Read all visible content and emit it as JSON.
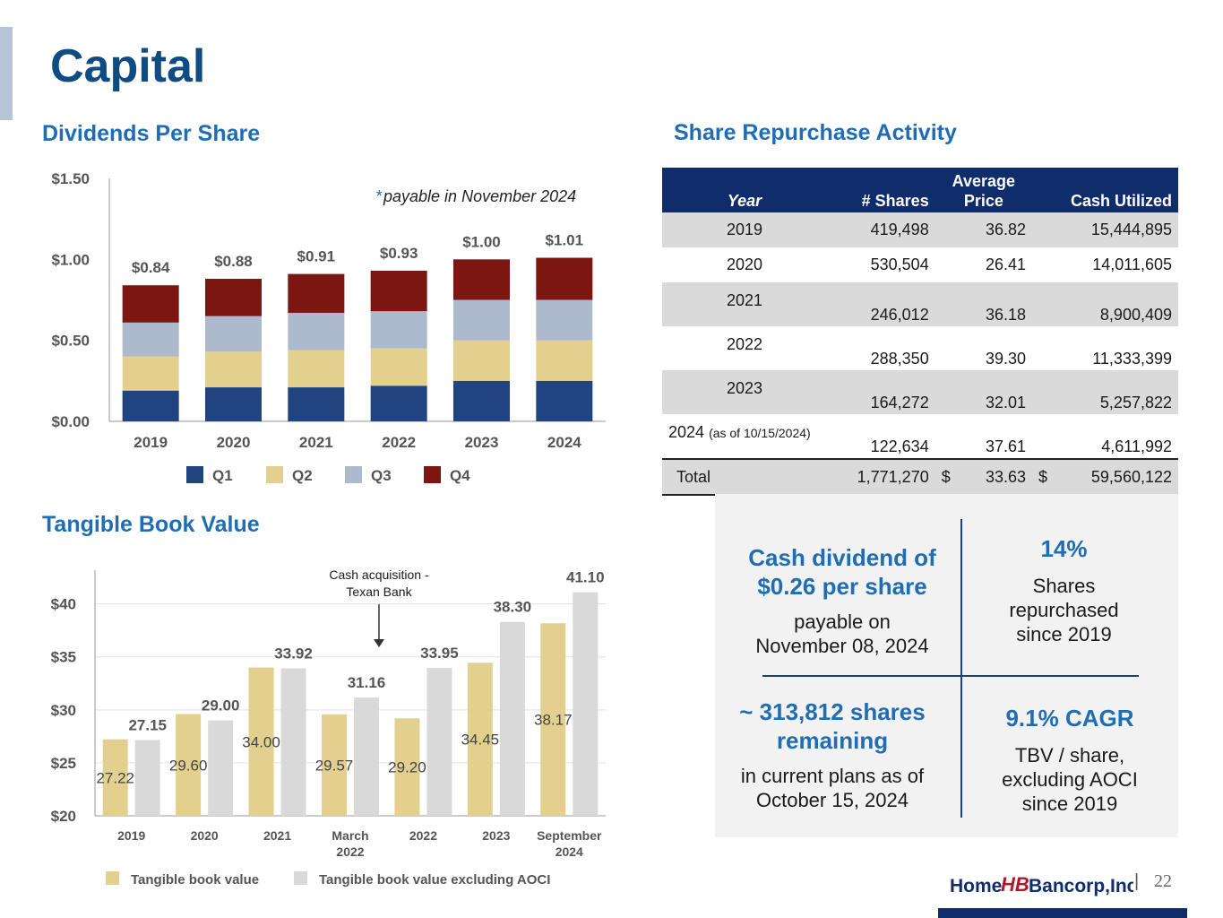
{
  "page": {
    "title": "Capital",
    "page_number": "22",
    "pipe": "|"
  },
  "dividends": {
    "section_title": "Dividends Per Share",
    "note_star": "*",
    "note_text": "payable in November 2024",
    "star_marker": "*"
  },
  "tbv": {
    "section_title": "Tangible Book Value",
    "annotation_line1": "Cash acquisition -",
    "annotation_line2": "Texan Bank"
  },
  "repurchase": {
    "section_title": "Share Repurchase Activity",
    "headers": {
      "year": "Year",
      "shares": "# Shares",
      "avg_line1": "Average",
      "avg_line2": "Price",
      "cash": "Cash Utilized"
    },
    "rows": [
      {
        "year": "2019",
        "note": "",
        "shares": "419,498",
        "price": "36.82",
        "cash": "15,444,895"
      },
      {
        "year": "2020",
        "note": "",
        "shares": "530,504",
        "price": "26.41",
        "cash": "14,011,605"
      },
      {
        "year": "2021",
        "note": "",
        "shares": "246,012",
        "price": "36.18",
        "cash": "8,900,409"
      },
      {
        "year": "2022",
        "note": "",
        "shares": "288,350",
        "price": "39.30",
        "cash": "11,333,399"
      },
      {
        "year": "2023",
        "note": "",
        "shares": "164,272",
        "price": "32.01",
        "cash": "5,257,822"
      },
      {
        "year": "2024",
        "note": "(as of 10/15/2024)",
        "shares": "122,634",
        "price": "37.61",
        "cash": "4,611,992"
      }
    ],
    "total": {
      "label": "Total",
      "shares": "1,771,270",
      "dollar": "$",
      "price": "33.63",
      "cash": "59,560,122"
    }
  },
  "highlights": {
    "q1_big_line1": "Cash dividend of",
    "q1_big_line2": "$0.26 per share",
    "q1_small_line1": "payable on",
    "q1_small_line2": "November 08, 2024",
    "q2_big": "14%",
    "q2_small_line1": "Shares",
    "q2_small_line2": "repurchased",
    "q2_small_line3": "since 2019",
    "q3_big_line1": "~ 313,812 shares",
    "q3_big_line2": "remaining",
    "q3_small_line1": "in current plans as of",
    "q3_small_line2": "October 15, 2024",
    "q4_big": "9.1% CAGR",
    "q4_small_line1": "TBV / share,",
    "q4_small_line2": "excluding AOCI",
    "q4_small_line3": "since 2019"
  },
  "logo": {
    "text_home": "Home",
    "text_monogram": "HB",
    "text_bancorp": "Bancorp,Inc."
  },
  "colors": {
    "q1": "#1f447f",
    "q2": "#e3cf8e",
    "q3": "#adb9cc",
    "q4": "#7c1610",
    "tbv": "#e3cf8e",
    "tbv_ex": "#d9d9d9",
    "title_blue": "#0f4c81",
    "section_blue": "#1f6db5",
    "navy": "#0f2d6b"
  },
  "chart_data": [
    {
      "type": "bar",
      "stacked": true,
      "title": "Dividends Per Share",
      "categories": [
        "2019",
        "2020",
        "2021",
        "2022",
        "2023",
        "2024"
      ],
      "series": [
        {
          "name": "Q1",
          "values": [
            0.19,
            0.21,
            0.21,
            0.22,
            0.25,
            0.25
          ]
        },
        {
          "name": "Q2",
          "values": [
            0.21,
            0.22,
            0.23,
            0.23,
            0.25,
            0.25
          ]
        },
        {
          "name": "Q3",
          "values": [
            0.21,
            0.22,
            0.23,
            0.23,
            0.25,
            0.25
          ]
        },
        {
          "name": "Q4",
          "values": [
            0.23,
            0.23,
            0.24,
            0.25,
            0.25,
            0.26
          ]
        }
      ],
      "totals": [
        0.84,
        0.88,
        0.91,
        0.93,
        1.0,
        1.01
      ],
      "total_labels": [
        "$0.84",
        "$0.88",
        "$0.91",
        "$0.93",
        "$1.00",
        "$1.01"
      ],
      "yticks": [
        0,
        0.5,
        1.0,
        1.5
      ],
      "ytick_labels": [
        "$0.00",
        "$0.50",
        "$1.00",
        "$1.50"
      ],
      "ylim": [
        0,
        1.5
      ],
      "legend": [
        "Q1",
        "Q2",
        "Q3",
        "Q4"
      ],
      "legend_position": "bottom"
    },
    {
      "type": "bar",
      "title": "Tangible Book Value",
      "categories": [
        "2019",
        "2020",
        "2021",
        "March 2022",
        "2022",
        "2023",
        "September 2024"
      ],
      "category_lines": [
        [
          "2019"
        ],
        [
          "2020"
        ],
        [
          "2021"
        ],
        [
          "March",
          "2022"
        ],
        [
          "2022"
        ],
        [
          "2023"
        ],
        [
          "September",
          "2024"
        ]
      ],
      "series": [
        {
          "name": "Tangible book value",
          "values": [
            27.22,
            29.6,
            34.0,
            29.57,
            29.2,
            34.45,
            38.17
          ],
          "labels": [
            "27.22",
            "29.60",
            "34.00",
            "29.57",
            "29.20",
            "34.45",
            "38.17"
          ]
        },
        {
          "name": "Tangible book value excluding AOCI",
          "values": [
            27.15,
            29.0,
            33.92,
            31.16,
            33.95,
            38.3,
            41.1
          ],
          "labels": [
            "27.15",
            "29.00",
            "33.92",
            "31.16",
            "33.95",
            "38.30",
            "41.10"
          ]
        }
      ],
      "yticks": [
        20,
        25,
        30,
        35,
        40
      ],
      "ytick_labels": [
        "$20",
        "$25",
        "$30",
        "$35",
        "$40"
      ],
      "ylim": [
        20,
        42
      ],
      "annotation": "Cash acquisition - Texan Bank",
      "legend": [
        "Tangible book value",
        "Tangible book value excluding AOCI"
      ],
      "legend_position": "bottom"
    }
  ]
}
